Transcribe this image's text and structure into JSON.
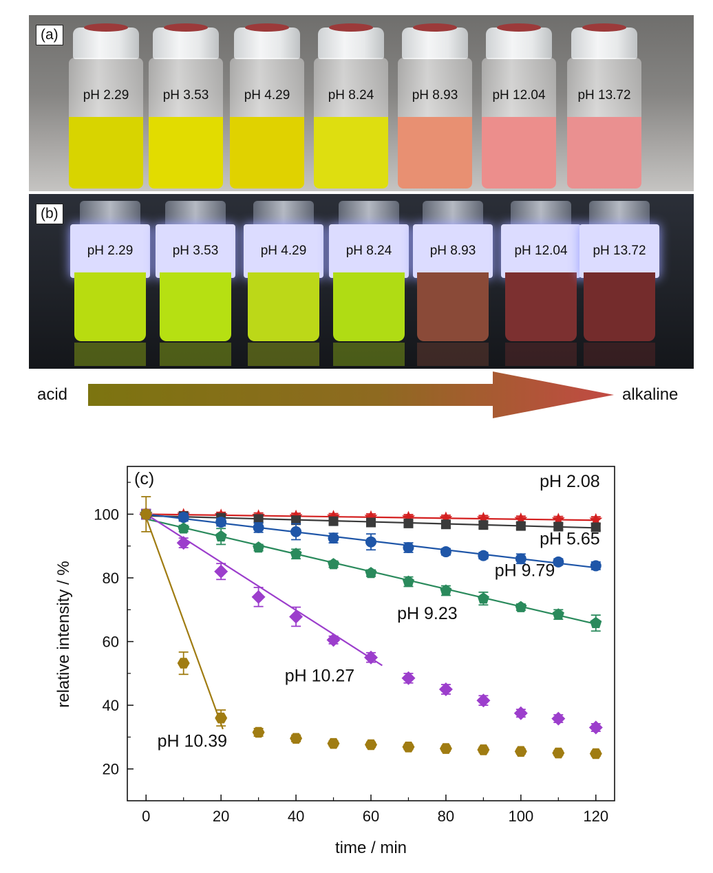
{
  "panel_a": {
    "label": "(a)",
    "vials": [
      {
        "label": "pH 2.29",
        "color": "#d8d400"
      },
      {
        "label": "pH 3.53",
        "color": "#e2dc00"
      },
      {
        "label": "pH 4.29",
        "color": "#e0d200"
      },
      {
        "label": "pH 8.24",
        "color": "#dede10"
      },
      {
        "label": "pH 8.93",
        "color": "#e89072"
      },
      {
        "label": "pH 12.04",
        "color": "#ec8e8c"
      },
      {
        "label": "pH 13.72",
        "color": "#ea9090"
      }
    ]
  },
  "panel_b": {
    "label": "(b)",
    "vials": [
      {
        "label": "pH 2.29",
        "color": "#b8dc10"
      },
      {
        "label": "pH 3.53",
        "color": "#b6e012"
      },
      {
        "label": "pH 4.29",
        "color": "#bcd818"
      },
      {
        "label": "pH 8.24",
        "color": "#b0dc14"
      },
      {
        "label": "pH 8.93",
        "color": "#8a4a38"
      },
      {
        "label": "pH 12.04",
        "color": "#7c3030"
      },
      {
        "label": "pH 13.72",
        "color": "#742c2c"
      }
    ]
  },
  "arrow": {
    "left_label": "acid",
    "right_label": "alkaline",
    "start_color": "#7c7410",
    "end_color": "#c24a44"
  },
  "chart_data": {
    "type": "scatter",
    "panel_label": "(c)",
    "xlabel": "time / min",
    "ylabel": "relative  intensity / %",
    "xlim": [
      -5,
      125
    ],
    "ylim": [
      10,
      115
    ],
    "xticks": [
      0,
      20,
      40,
      60,
      80,
      100,
      120
    ],
    "yticks": [
      20,
      40,
      60,
      80,
      100
    ],
    "grid": false,
    "series": [
      {
        "name": "pH 2.08",
        "color": "#d42020",
        "marker": "star",
        "x": [
          0,
          10,
          20,
          30,
          40,
          50,
          60,
          70,
          80,
          90,
          100,
          110,
          120
        ],
        "y": [
          100,
          99.8,
          99.6,
          99.4,
          99.3,
          99.2,
          99.1,
          98.9,
          98.7,
          98.6,
          98.4,
          98.3,
          98.2
        ],
        "err": [
          1.5,
          1,
          1,
          1,
          1,
          1,
          1,
          1,
          1,
          1,
          1,
          1,
          1
        ],
        "fit": [
          [
            0,
            100
          ],
          [
            120,
            98.1
          ]
        ]
      },
      {
        "name": "pH 5.65",
        "color": "#3a3a3a",
        "marker": "square",
        "x": [
          0,
          10,
          20,
          30,
          40,
          50,
          60,
          70,
          80,
          90,
          100,
          110,
          120
        ],
        "y": [
          100,
          99.4,
          98.9,
          98.5,
          98.1,
          97.8,
          97.4,
          97.1,
          96.8,
          96.6,
          96.3,
          96.1,
          95.9
        ],
        "err": [
          1.5,
          1,
          1,
          1,
          1,
          1,
          1,
          1,
          1,
          1,
          1,
          1,
          1
        ],
        "fit": [
          [
            0,
            99.5
          ],
          [
            120,
            95.7
          ]
        ]
      },
      {
        "name": "pH 9.79",
        "color": "#1f56a8",
        "marker": "circle",
        "x": [
          0,
          10,
          20,
          30,
          40,
          50,
          60,
          70,
          80,
          90,
          100,
          110,
          120
        ],
        "y": [
          100,
          99,
          97.5,
          95.8,
          94.5,
          92.5,
          91.3,
          89.5,
          88.2,
          87,
          86,
          85,
          83.8
        ],
        "err": [
          1.5,
          1.2,
          1.2,
          1.5,
          2.5,
          1.5,
          2.5,
          1.5,
          1,
          1,
          1.5,
          1,
          1.2
        ],
        "fit": [
          [
            0,
            100
          ],
          [
            120,
            83.2
          ]
        ]
      },
      {
        "name": "pH 9.23",
        "color": "#2a8a5c",
        "marker": "pentagon",
        "x": [
          0,
          10,
          20,
          30,
          40,
          50,
          60,
          70,
          80,
          90,
          100,
          110,
          120
        ],
        "y": [
          100,
          95.5,
          93,
          89.5,
          87.5,
          84.3,
          81.5,
          78.8,
          76,
          73.5,
          70.8,
          68.5,
          65.8
        ],
        "err": [
          1.5,
          1,
          2.5,
          1,
          1.5,
          1,
          1,
          1.5,
          1.5,
          2,
          1,
          1.5,
          2.5
        ],
        "fit": [
          [
            0,
            98.5
          ],
          [
            120,
            65.5
          ]
        ]
      },
      {
        "name": "pH 10.27",
        "color": "#9c3ecc",
        "marker": "diamond",
        "x": [
          0,
          10,
          20,
          30,
          40,
          50,
          60,
          70,
          80,
          90,
          100,
          110,
          120
        ],
        "y": [
          100,
          91,
          82,
          74,
          67.8,
          60.5,
          55,
          48.5,
          45,
          41.5,
          37.5,
          35.8,
          33
        ],
        "err": [
          1.5,
          1.5,
          2.5,
          3,
          3,
          1.2,
          1.5,
          1.5,
          1.5,
          1.5,
          1.2,
          1.2,
          1.2
        ],
        "fit": [
          [
            0,
            100
          ],
          [
            63,
            52.5
          ]
        ]
      },
      {
        "name": "pH 10.39",
        "color": "#a07c12",
        "marker": "hexagon",
        "x": [
          0,
          10,
          20,
          30,
          40,
          50,
          60,
          70,
          80,
          90,
          100,
          110,
          120
        ],
        "y": [
          100,
          53.2,
          36,
          31.5,
          29.6,
          28,
          27.6,
          26.9,
          26.4,
          26,
          25.5,
          25,
          24.8
        ],
        "err": [
          5.5,
          3.5,
          2.5,
          1.2,
          1,
          0.8,
          0.8,
          0.8,
          0.8,
          0.8,
          0.8,
          0.8,
          0.8
        ],
        "fit": [
          [
            0,
            99
          ],
          [
            20.5,
            32.5
          ]
        ]
      }
    ],
    "annotations": [
      {
        "text": "pH 2.08",
        "x": 105,
        "y": 108.5
      },
      {
        "text": "pH 5.65",
        "x": 105,
        "y": 90.5
      },
      {
        "text": "pH 9.79",
        "x": 93,
        "y": 80.5
      },
      {
        "text": "pH 9.23",
        "x": 67,
        "y": 67
      },
      {
        "text": "pH 10.27",
        "x": 37,
        "y": 47.5
      },
      {
        "text": "pH 10.39",
        "x": 3,
        "y": 27
      }
    ]
  }
}
